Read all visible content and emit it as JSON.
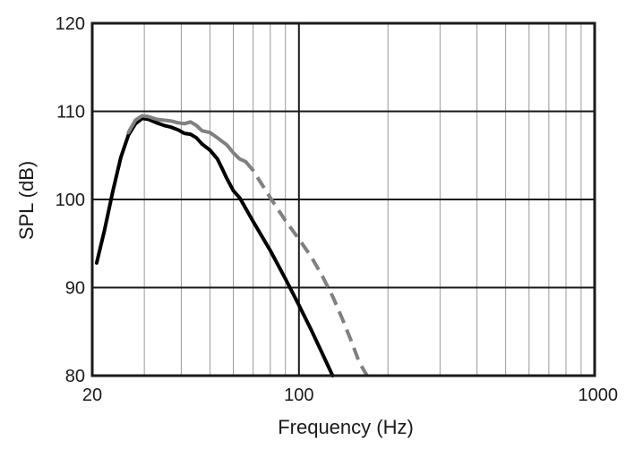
{
  "chart_data": {
    "type": "line",
    "title": "",
    "xlabel": "Frequency (Hz)",
    "ylabel": "SPL (dB)",
    "xscale": "log",
    "xlim": [
      20,
      1000
    ],
    "ylim": [
      80,
      120
    ],
    "grid": true,
    "x_ticks": [
      20,
      100,
      1000
    ],
    "y_ticks": [
      80,
      90,
      100,
      110,
      120
    ],
    "series": [
      {
        "color": "#000000",
        "style": "solid",
        "points": [
          [
            20.7,
            92.8
          ],
          [
            22,
            96.5
          ],
          [
            23.5,
            101
          ],
          [
            25,
            104.8
          ],
          [
            26.5,
            107.3
          ],
          [
            28,
            108.6
          ],
          [
            29.5,
            109.2
          ],
          [
            31,
            109.1
          ],
          [
            33,
            108.7
          ],
          [
            35,
            108.4
          ],
          [
            37,
            108.2
          ],
          [
            39,
            107.9
          ],
          [
            41,
            107.5
          ],
          [
            43,
            107.4
          ],
          [
            45,
            107.0
          ],
          [
            47,
            106.3
          ],
          [
            50,
            105.6
          ],
          [
            53,
            104.6
          ],
          [
            55,
            103.5
          ],
          [
            57,
            102.4
          ],
          [
            60,
            101.0
          ],
          [
            63,
            100.2
          ],
          [
            70,
            97.5
          ],
          [
            80,
            94.2
          ],
          [
            90,
            91.0
          ],
          [
            100,
            88.0
          ],
          [
            110,
            85.2
          ],
          [
            120,
            82.5
          ],
          [
            130,
            80.0
          ]
        ]
      },
      {
        "color": "#808080",
        "style": "solid",
        "points": [
          [
            26.5,
            107.6
          ],
          [
            28,
            109.0
          ],
          [
            29.5,
            109.5
          ],
          [
            31,
            109.4
          ],
          [
            33,
            109.1
          ],
          [
            35,
            109.0
          ],
          [
            37,
            108.9
          ],
          [
            39,
            108.7
          ],
          [
            41,
            108.6
          ],
          [
            43,
            108.8
          ],
          [
            45,
            108.4
          ],
          [
            47,
            107.8
          ],
          [
            50,
            107.6
          ],
          [
            53,
            107.0
          ],
          [
            57,
            106.2
          ],
          [
            60,
            105.3
          ],
          [
            63,
            104.6
          ],
          [
            66,
            104.3
          ]
        ]
      },
      {
        "color": "#808080",
        "style": "dashed",
        "points": [
          [
            66,
            104.3
          ],
          [
            70,
            103.3
          ],
          [
            80,
            100.2
          ],
          [
            90,
            97.6
          ],
          [
            100,
            95.5
          ],
          [
            110,
            93.5
          ],
          [
            120,
            91.3
          ],
          [
            130,
            89.0
          ],
          [
            140,
            86.5
          ],
          [
            150,
            84.0
          ],
          [
            160,
            81.5
          ],
          [
            170,
            80.0
          ]
        ]
      }
    ]
  }
}
